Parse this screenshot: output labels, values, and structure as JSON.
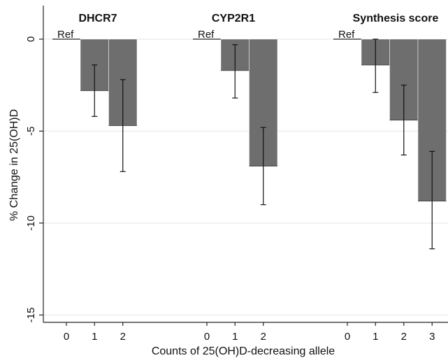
{
  "chart_data": {
    "type": "bar",
    "ylabel": "% Change in 25(OH)D",
    "xlabel": "Counts of 25(OH)D-decreasing allele",
    "ylim": [
      -15,
      1
    ],
    "yticks": [
      0,
      -5,
      -10,
      -15
    ],
    "ytick_labels": [
      "0",
      "-5",
      "-10",
      "-15"
    ],
    "grid": "horizontal",
    "bar_color": "#6e6e6e",
    "ref_label": "Ref",
    "panels": [
      {
        "title": "DHCR7",
        "categories": [
          "0",
          "1",
          "2"
        ],
        "values": [
          0,
          -2.8,
          -4.7
        ],
        "ci_low": [
          null,
          -4.2,
          -7.2
        ],
        "ci_high": [
          null,
          -1.4,
          -2.2
        ]
      },
      {
        "title": "CYP2R1",
        "categories": [
          "0",
          "1",
          "2"
        ],
        "values": [
          0,
          -1.7,
          -6.9
        ],
        "ci_low": [
          null,
          -3.2,
          -9.0
        ],
        "ci_high": [
          null,
          -0.3,
          -4.8
        ]
      },
      {
        "title": "Synthesis score",
        "categories": [
          "0",
          "1",
          "2",
          "3"
        ],
        "values": [
          0,
          -1.4,
          -4.4,
          -8.8
        ],
        "ci_low": [
          null,
          -2.9,
          -6.3,
          -11.4
        ],
        "ci_high": [
          null,
          0.0,
          -2.5,
          -6.1
        ]
      }
    ]
  }
}
